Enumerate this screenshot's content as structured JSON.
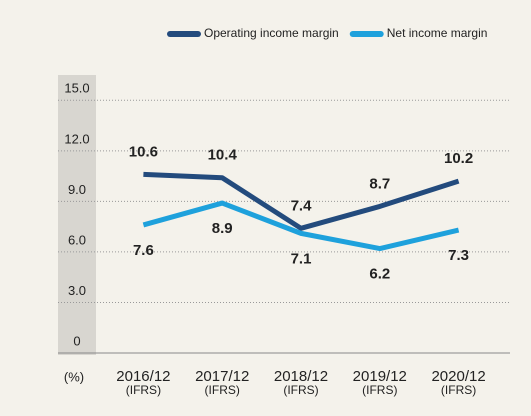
{
  "chart_data": {
    "type": "line",
    "categories": [
      "2016/12",
      "2017/12",
      "2018/12",
      "2019/12",
      "2020/12"
    ],
    "category_notes": [
      "(IFRS)",
      "(IFRS)",
      "(IFRS)",
      "(IFRS)",
      "(IFRS)"
    ],
    "y_unit": "(%)",
    "series": [
      {
        "name": "Operating income margin",
        "color": "#234b7d",
        "values": [
          10.6,
          10.4,
          7.4,
          8.7,
          10.2
        ],
        "label_position": "above"
      },
      {
        "name": "Net income margin",
        "color": "#1ea1dc",
        "values": [
          7.6,
          8.9,
          7.1,
          6.2,
          7.3
        ],
        "label_position": "below"
      }
    ],
    "ylim": [
      0,
      16.5
    ],
    "yticks": [
      0,
      {
        "value": 3,
        "label": "3.0"
      },
      {
        "value": 6,
        "label": "6.0"
      },
      {
        "value": 9,
        "label": "9.0"
      },
      {
        "value": 12,
        "label": "12.0"
      },
      {
        "value": 15,
        "label": "15.0"
      }
    ],
    "grid": true
  }
}
